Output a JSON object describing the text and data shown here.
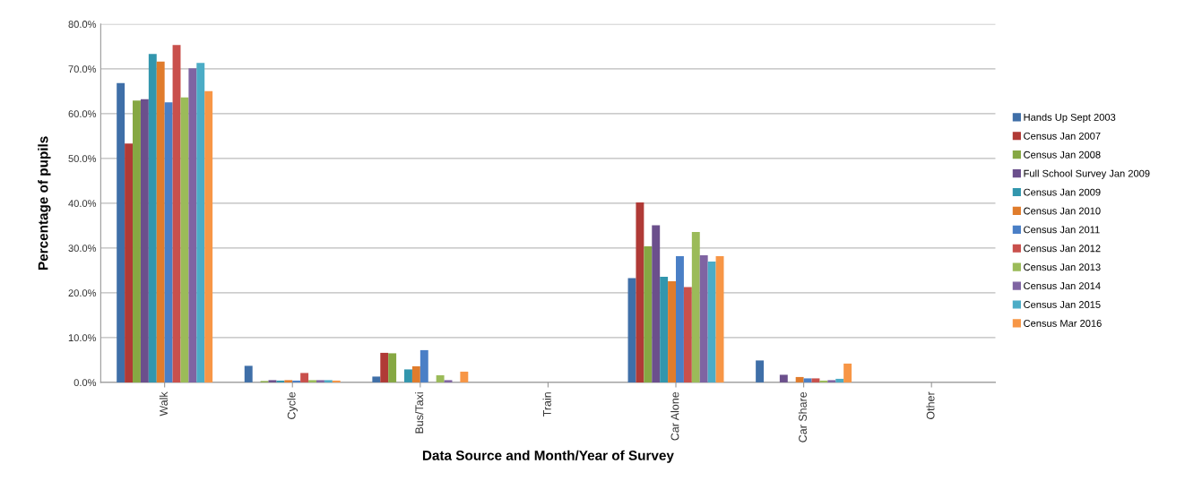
{
  "chart_data": {
    "type": "bar",
    "xlabel": "Data Source and Month/Year of Survey",
    "ylabel": "Percentage of pupils",
    "categories": [
      "Walk",
      "Cycle",
      "Bus/Taxi",
      "Train",
      "Car Alone",
      "Car Share",
      "Other"
    ],
    "ylim": [
      0,
      80
    ],
    "yticks": [
      {
        "value": 0,
        "label": "0.0%"
      },
      {
        "value": 10,
        "label": "10.0%"
      },
      {
        "value": 20,
        "label": "20.0%"
      },
      {
        "value": 30,
        "label": "30.0%"
      },
      {
        "value": 40,
        "label": "40.0%"
      },
      {
        "value": 50,
        "label": "50.0%"
      },
      {
        "value": 60,
        "label": "60.0%"
      },
      {
        "value": 70,
        "label": "70.0%"
      },
      {
        "value": 80,
        "label": "80.0%"
      }
    ],
    "grid": "y",
    "legend": "right",
    "series": [
      {
        "name": "Hands Up Sept 2003",
        "color": "#3f6fa8",
        "values": [
          66.8,
          3.7,
          1.3,
          0,
          23.3,
          4.9,
          0
        ]
      },
      {
        "name": "Census Jan 2007",
        "color": "#b03a36",
        "values": [
          53.3,
          0,
          6.6,
          0,
          40.2,
          0,
          0
        ]
      },
      {
        "name": "Census Jan 2008",
        "color": "#86a843",
        "values": [
          62.9,
          0.3,
          6.5,
          0,
          30.4,
          0,
          0
        ]
      },
      {
        "name": "Full School Survey Jan 2009",
        "color": "#6b4f8c",
        "values": [
          63.2,
          0.5,
          0,
          0,
          35.1,
          1.7,
          0
        ]
      },
      {
        "name": "Census Jan 2009",
        "color": "#3296ad",
        "values": [
          73.3,
          0.4,
          2.9,
          0,
          23.6,
          0,
          0
        ]
      },
      {
        "name": "Census Jan 2010",
        "color": "#e07c2c",
        "values": [
          71.6,
          0.5,
          3.6,
          0,
          22.6,
          1.2,
          0
        ]
      },
      {
        "name": "Census Jan 2011",
        "color": "#4a7fc6",
        "values": [
          62.5,
          0.4,
          7.2,
          0,
          28.2,
          0.9,
          0
        ]
      },
      {
        "name": "Census Jan 2012",
        "color": "#c9504c",
        "values": [
          75.3,
          2.1,
          0,
          0,
          21.3,
          0.9,
          0
        ]
      },
      {
        "name": "Census Jan 2013",
        "color": "#9bbb59",
        "values": [
          63.6,
          0.5,
          1.6,
          0,
          33.6,
          0.4,
          0
        ]
      },
      {
        "name": "Census Jan 2014",
        "color": "#7f64a2",
        "values": [
          70.1,
          0.5,
          0.5,
          0,
          28.4,
          0.5,
          0
        ]
      },
      {
        "name": "Census Jan 2015",
        "color": "#4bacc6",
        "values": [
          71.3,
          0.5,
          0,
          0,
          27.0,
          0.8,
          0
        ]
      },
      {
        "name": "Census Mar 2016",
        "color": "#f79646",
        "values": [
          65.0,
          0.4,
          2.4,
          0,
          28.2,
          4.2,
          0
        ]
      }
    ]
  }
}
